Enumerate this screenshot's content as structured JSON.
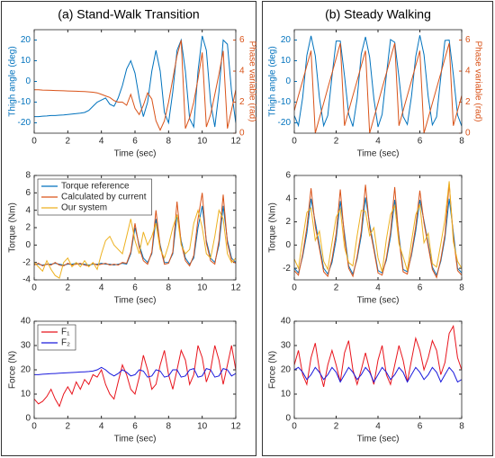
{
  "panel_titles": [
    "(a) Stand-Walk Transition",
    "(b) Steady Walking"
  ],
  "chart_data": [
    {
      "type": "line",
      "xlabel": "Time (sec)",
      "ylabel": "Thigh angle (deg)",
      "y2label": "Phase variable (rad)",
      "xlim": [
        0,
        12
      ],
      "xticks": [
        0,
        2,
        4,
        6,
        8,
        10,
        12
      ],
      "ylim": [
        -25,
        25
      ],
      "yticks": [
        -20,
        -10,
        0,
        10,
        20
      ],
      "y2lim": [
        0,
        6.67
      ],
      "y2ticks": [
        0,
        2,
        4,
        6
      ],
      "x": [
        0,
        0.25,
        0.5,
        0.75,
        1,
        1.25,
        1.5,
        1.75,
        2,
        2.25,
        2.5,
        2.75,
        3,
        3.25,
        3.5,
        3.75,
        4,
        4.25,
        4.5,
        4.75,
        5,
        5.25,
        5.5,
        5.75,
        6,
        6.25,
        6.5,
        6.75,
        7,
        7.25,
        7.5,
        7.75,
        8,
        8.25,
        8.5,
        8.75,
        9,
        9.25,
        9.5,
        9.75,
        10,
        10.25,
        10.5,
        10.75,
        11,
        11.25,
        11.5,
        11.75,
        12
      ],
      "series": [
        {
          "color": "#0072BD",
          "values": [
            -17,
            -17,
            -16.8,
            -16.7,
            -16.5,
            -16.5,
            -16.3,
            -16.2,
            -16,
            -15.8,
            -15.5,
            -15.3,
            -15,
            -14,
            -12,
            -10,
            -9,
            -8,
            -11,
            -12,
            -8,
            -2,
            6,
            10,
            4,
            -8,
            -17,
            -10,
            5,
            15,
            5,
            -15,
            -20,
            -5,
            15,
            20,
            5,
            -18,
            -22,
            5,
            22,
            15,
            -10,
            -22,
            -5,
            20,
            18,
            -5,
            -20
          ]
        },
        {
          "color": "#D95319",
          "axis": "y2",
          "values": [
            2.8,
            2.8,
            2.78,
            2.77,
            2.76,
            2.75,
            2.74,
            2.73,
            2.72,
            2.71,
            2.7,
            2.69,
            2.68,
            2.66,
            2.64,
            2.6,
            2.5,
            2.4,
            2.3,
            2.1,
            2,
            2,
            1.8,
            2.5,
            1.6,
            1.2,
            1.8,
            2.6,
            2.2,
            0.8,
            0.2,
            0.8,
            2,
            3.5,
            5,
            6,
            0.3,
            1,
            2,
            3.5,
            5.2,
            0.4,
            1.2,
            2.5,
            3.8,
            5.3,
            0.3,
            1.5,
            2.8
          ]
        }
      ]
    },
    {
      "type": "line",
      "xlabel": "Time (sec)",
      "ylabel": "Torque (Nm)",
      "legend": "upper left",
      "xlim": [
        0,
        12
      ],
      "xticks": [
        0,
        2,
        4,
        6,
        8,
        10,
        12
      ],
      "ylim": [
        -4,
        8
      ],
      "yticks": [
        -4,
        -2,
        0,
        2,
        4,
        6,
        8
      ],
      "x": [
        0,
        0.25,
        0.5,
        0.75,
        1,
        1.25,
        1.5,
        1.75,
        2,
        2.25,
        2.5,
        2.75,
        3,
        3.25,
        3.5,
        3.75,
        4,
        4.25,
        4.5,
        4.75,
        5,
        5.25,
        5.5,
        5.75,
        6,
        6.25,
        6.5,
        6.75,
        7,
        7.25,
        7.5,
        7.75,
        8,
        8.25,
        8.5,
        8.75,
        9,
        9.25,
        9.5,
        9.75,
        10,
        10.25,
        10.5,
        10.75,
        11,
        11.25,
        11.5,
        11.75,
        12
      ],
      "series": [
        {
          "name": "Torque reference",
          "color": "#0072BD",
          "values": [
            -2.2,
            -2.2,
            -2.3,
            -2.2,
            -2.2,
            -2.1,
            -2.2,
            -2.3,
            -2.2,
            -2.2,
            -2.1,
            -2.2,
            -2.2,
            -2.3,
            -2.2,
            -2.2,
            -2.1,
            -2.2,
            -2.2,
            -2.3,
            -2.2,
            -2.1,
            -2.2,
            -1,
            2,
            0,
            -1.5,
            -2,
            -1,
            3,
            0,
            -2,
            -2,
            -1,
            3.5,
            0.5,
            -1.5,
            -2.2,
            -1.5,
            2,
            4.5,
            0.5,
            -1.5,
            -2,
            0,
            4.5,
            0.5,
            -1.5,
            -2
          ]
        },
        {
          "name": "Calculated by current",
          "color": "#D95319",
          "values": [
            -2.3,
            -2.1,
            -2.4,
            -2.2,
            -2.3,
            -2,
            -2.3,
            -2.4,
            -2.1,
            -2.3,
            -2.2,
            -2.1,
            -2.3,
            -2.4,
            -2.1,
            -2.3,
            -2.2,
            -2.1,
            -2.3,
            -2.2,
            -2.3,
            -2,
            -2.1,
            -0.8,
            2.5,
            -0.3,
            -1.8,
            -2.2,
            -0.8,
            4,
            -0.2,
            -2.2,
            -2.1,
            -0.8,
            5,
            0.2,
            -1.8,
            -2.4,
            -1.2,
            3,
            6,
            0.2,
            -1.8,
            -2.2,
            0.5,
            5.8,
            0.2,
            -1.8,
            -2.1
          ]
        },
        {
          "name": "Our system",
          "color": "#EDB120",
          "values": [
            -2,
            -2.5,
            -3,
            -1.8,
            -2.8,
            -3.5,
            -3.8,
            -2,
            -1.5,
            -2.5,
            -2,
            -2.5,
            -1.8,
            -2.5,
            -2,
            -2.8,
            -1,
            0.5,
            1,
            0,
            -0.5,
            -1,
            1,
            3,
            0.5,
            -1,
            1.5,
            0,
            1,
            2.5,
            -0.5,
            -1.5,
            0,
            2,
            3.5,
            0,
            -1,
            -0.5,
            2.5,
            4,
            2,
            -1,
            -1.5,
            1,
            4,
            3,
            -1,
            -2,
            -1.5
          ]
        }
      ]
    },
    {
      "type": "line",
      "xlabel": "Time (sec)",
      "ylabel": "Force (N)",
      "legend": "upper left",
      "xlim": [
        0,
        12
      ],
      "xticks": [
        0,
        2,
        4,
        6,
        8,
        10,
        12
      ],
      "ylim": [
        0,
        40
      ],
      "yticks": [
        0,
        10,
        20,
        30,
        40
      ],
      "x": [
        0,
        0.25,
        0.5,
        0.75,
        1,
        1.25,
        1.5,
        1.75,
        2,
        2.25,
        2.5,
        2.75,
        3,
        3.25,
        3.5,
        3.75,
        4,
        4.25,
        4.5,
        4.75,
        5,
        5.25,
        5.5,
        5.75,
        6,
        6.25,
        6.5,
        6.75,
        7,
        7.25,
        7.5,
        7.75,
        8,
        8.25,
        8.5,
        8.75,
        9,
        9.25,
        9.5,
        9.75,
        10,
        10.25,
        10.5,
        10.75,
        11,
        11.25,
        11.5,
        11.75,
        12
      ],
      "series": [
        {
          "name": "F₁",
          "color": "#E8141C",
          "values": [
            8,
            6,
            7,
            9,
            12,
            8,
            5,
            10,
            13,
            10,
            15,
            12,
            16,
            14,
            18,
            17,
            20,
            14,
            10,
            8,
            15,
            22,
            18,
            12,
            10,
            17,
            26,
            20,
            12,
            14,
            22,
            28,
            18,
            12,
            20,
            28,
            24,
            14,
            18,
            30,
            25,
            15,
            20,
            30,
            24,
            14,
            22,
            30,
            20
          ]
        },
        {
          "name": "F₂",
          "color": "#1A1ADC",
          "values": [
            18,
            18,
            18.2,
            18.3,
            18.4,
            18.5,
            18.6,
            18.7,
            18.8,
            18.9,
            19,
            19.1,
            19.2,
            19.3,
            19.5,
            20,
            21,
            20,
            18.5,
            17.5,
            18.5,
            20,
            19,
            17.5,
            18,
            20,
            19.5,
            17,
            17.5,
            20,
            19.5,
            17,
            17.5,
            20,
            20,
            17,
            17.5,
            20,
            20.5,
            17,
            17.5,
            20.5,
            20,
            17,
            17.5,
            20.5,
            20,
            17.5,
            18.5
          ]
        }
      ]
    },
    {
      "type": "line",
      "xlabel": "Time (sec)",
      "ylabel": "Thigh angle (deg)",
      "y2label": "Phase variable (rad)",
      "xlim": [
        0,
        8
      ],
      "xticks": [
        0,
        2,
        4,
        6,
        8
      ],
      "ylim": [
        -25,
        25
      ],
      "yticks": [
        -20,
        -10,
        0,
        10,
        20
      ],
      "y2lim": [
        0,
        6.67
      ],
      "y2ticks": [
        0,
        2,
        4,
        6
      ],
      "x": [
        0,
        0.2,
        0.4,
        0.6,
        0.8,
        1,
        1.2,
        1.4,
        1.6,
        1.8,
        2,
        2.2,
        2.4,
        2.6,
        2.8,
        3,
        3.2,
        3.4,
        3.6,
        3.8,
        4,
        4.2,
        4.4,
        4.6,
        4.8,
        5,
        5.2,
        5.4,
        5.6,
        5.8,
        6,
        6.2,
        6.4,
        6.6,
        6.8,
        7,
        7.2,
        7.4,
        7.6,
        7.8,
        8
      ],
      "series": [
        {
          "color": "#0072BD",
          "values": [
            -16.5,
            -21.3,
            -7.8,
            12.5,
            22,
            12.5,
            -7.8,
            -21.4,
            -16.5,
            2.6,
            19.5,
            19.5,
            2.6,
            -15.8,
            -21.8,
            -8.5,
            13.2,
            21.5,
            11.8,
            -8.2,
            -22,
            -15.9,
            3.1,
            20.2,
            18.9,
            1.9,
            -16.9,
            -20.8,
            -7.2,
            12,
            22.3,
            13,
            -7.4,
            -21,
            -17.1,
            2.2,
            19.8,
            20,
            3.3,
            -16.2,
            -21.6
          ]
        },
        {
          "color": "#D95319",
          "axis": "y2",
          "values": [
            1.45,
            2.42,
            3.38,
            4.35,
            5.31,
            0,
            0.97,
            1.93,
            2.9,
            3.86,
            4.83,
            5.8,
            0.48,
            1.45,
            2.42,
            3.38,
            4.35,
            5.31,
            0,
            0.97,
            1.93,
            2.9,
            3.86,
            4.83,
            5.8,
            0.48,
            1.45,
            2.42,
            3.38,
            4.35,
            5.31,
            0,
            0.97,
            1.93,
            2.9,
            3.86,
            4.83,
            5.8,
            0.48,
            1.45,
            2.42
          ]
        }
      ]
    },
    {
      "type": "line",
      "xlabel": "Time (sec)",
      "ylabel": "Torque (Nm)",
      "xlim": [
        0,
        8
      ],
      "xticks": [
        0,
        2,
        4,
        6,
        8
      ],
      "ylim": [
        -3,
        6
      ],
      "yticks": [
        -2,
        0,
        2,
        4,
        6
      ],
      "x": [
        0,
        0.2,
        0.4,
        0.6,
        0.8,
        1,
        1.2,
        1.4,
        1.6,
        1.8,
        2,
        2.2,
        2.4,
        2.6,
        2.8,
        3,
        3.2,
        3.4,
        3.6,
        3.8,
        4,
        4.2,
        4.4,
        4.6,
        4.8,
        5,
        5.2,
        5.4,
        5.6,
        5.8,
        6,
        6.2,
        6.4,
        6.6,
        6.8,
        7,
        7.2,
        7.4,
        7.6,
        7.8,
        8
      ],
      "series": [
        {
          "color": "#0072BD",
          "values": [
            -2,
            -2.4,
            -1,
            1,
            4,
            2,
            0,
            -2,
            -2.5,
            -1.5,
            0.5,
            3.8,
            1,
            -1.8,
            -2.5,
            -1.2,
            0.8,
            4.1,
            1.8,
            -0.2,
            -2.2,
            -2.4,
            -1.3,
            0.7,
            3.9,
            0.8,
            -2.1,
            -2.3,
            -0.9,
            1.2,
            3.9,
            2.1,
            0.1,
            -1.9,
            -2.6,
            -1.4,
            0.6,
            4,
            1.1,
            -2,
            -2.4
          ]
        },
        {
          "color": "#D95319",
          "values": [
            -2.2,
            -2.6,
            -0.8,
            1.5,
            4.9,
            1.6,
            -0.3,
            -2.3,
            -2.7,
            -1.2,
            1,
            4.8,
            0.6,
            -2,
            -2.7,
            -1,
            1.2,
            5.2,
            1.5,
            -0.4,
            -2.4,
            -2.6,
            -1.1,
            1.1,
            5,
            0.5,
            -2.3,
            -2.5,
            -0.7,
            1.6,
            4.7,
            1.9,
            -0.1,
            -2.1,
            -2.8,
            -1.2,
            0.9,
            5.3,
            0.7,
            -2.2,
            -2.6
          ]
        },
        {
          "color": "#EDB120",
          "values": [
            -1.2,
            -2,
            0.5,
            2.8,
            3.2,
            0.4,
            1.2,
            -1.4,
            -2.1,
            0.2,
            2.4,
            3.1,
            -0.2,
            -1.5,
            -1.8,
            0.8,
            3,
            2.9,
            0.8,
            1.5,
            -1.1,
            -2.3,
            0.5,
            2.6,
            3.4,
            0.1,
            -1,
            -2.2,
            0.3,
            2.6,
            3.5,
            0.2,
            1,
            -1.6,
            -1.9,
            0.1,
            2.2,
            5.5,
            0.3,
            -1.4,
            -2
          ]
        }
      ]
    },
    {
      "type": "line",
      "xlabel": "Time (sec)",
      "ylabel": "Force (N)",
      "xlim": [
        0,
        8
      ],
      "xticks": [
        0,
        2,
        4,
        6,
        8
      ],
      "ylim": [
        0,
        40
      ],
      "yticks": [
        0,
        10,
        20,
        30,
        40
      ],
      "x": [
        0,
        0.2,
        0.4,
        0.6,
        0.8,
        1,
        1.2,
        1.4,
        1.6,
        1.8,
        2,
        2.2,
        2.4,
        2.6,
        2.8,
        3,
        3.2,
        3.4,
        3.6,
        3.8,
        4,
        4.2,
        4.4,
        4.6,
        4.8,
        5,
        5.2,
        5.4,
        5.6,
        5.8,
        6,
        6.2,
        6.4,
        6.6,
        6.8,
        7,
        7.2,
        7.4,
        7.6,
        7.8,
        8
      ],
      "series": [
        {
          "color": "#E8141C",
          "values": [
            22,
            28,
            18,
            14,
            25,
            31,
            20,
            13,
            22,
            28,
            22,
            15,
            27,
            32,
            20,
            14,
            20,
            27,
            20,
            14,
            24,
            30,
            18,
            14,
            22,
            30,
            24,
            15,
            24,
            33,
            28,
            20,
            25,
            32,
            28,
            18,
            23,
            35,
            38,
            25,
            20
          ]
        },
        {
          "color": "#1A1ADC",
          "values": [
            20,
            21,
            19,
            16,
            18,
            21,
            19,
            16,
            18,
            21,
            19,
            15,
            18,
            21,
            19,
            16,
            18,
            21,
            19,
            15,
            18,
            21,
            19,
            16,
            18,
            21,
            19,
            15,
            18,
            21,
            19,
            16,
            18,
            21,
            19,
            15,
            18,
            21,
            19,
            15,
            16
          ]
        }
      ]
    }
  ]
}
